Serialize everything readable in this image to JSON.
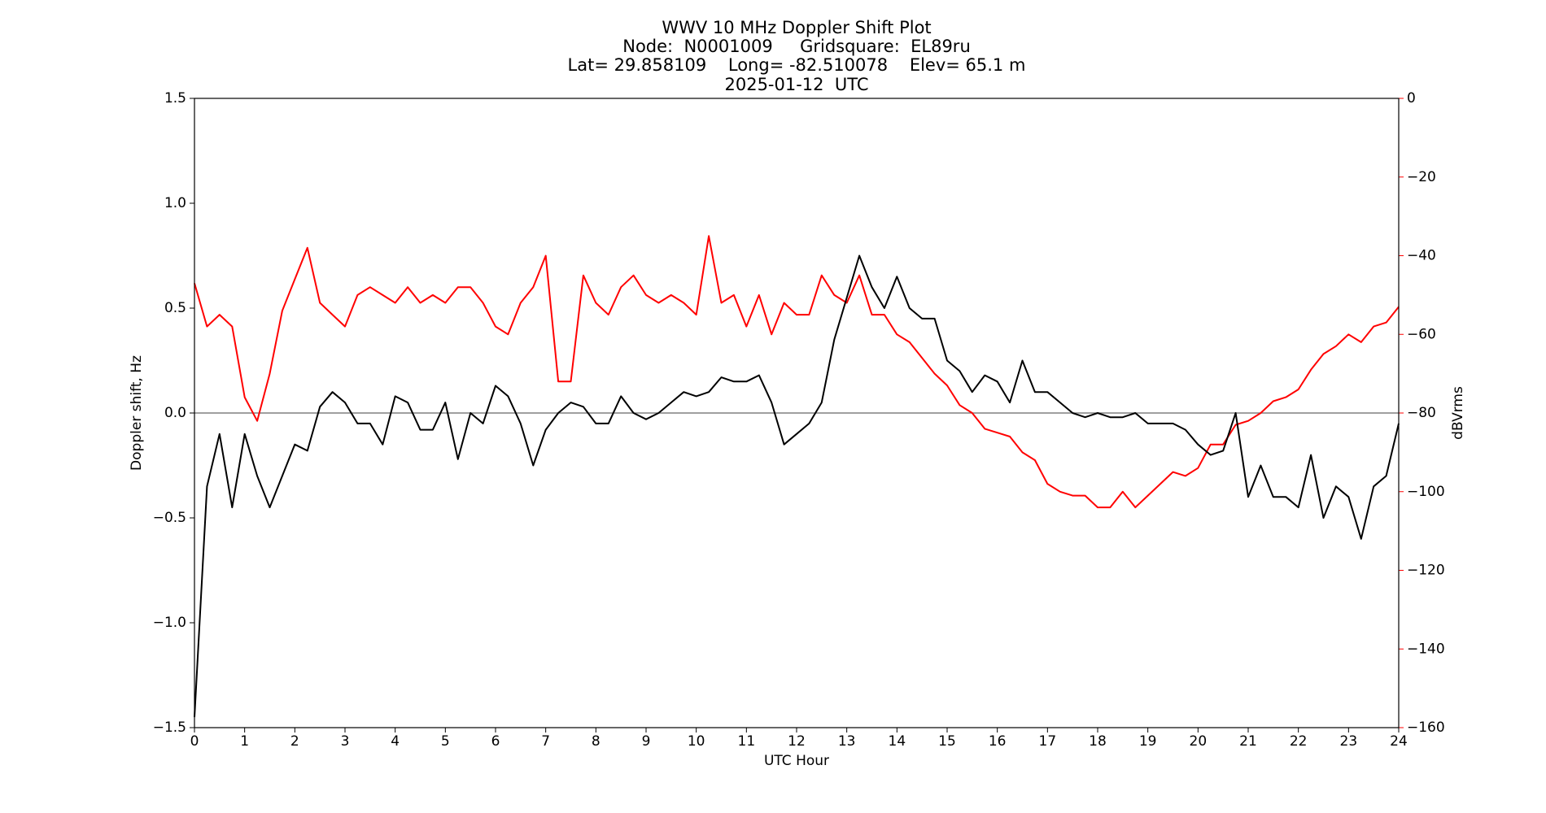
{
  "chart_data": {
    "type": "line",
    "title": "WWV 10 MHz Doppler Shift Plot",
    "subtitle": [
      "Node:  N0001009     Gridsquare:  EL89ru",
      "Lat= 29.858109    Long= -82.510078    Elev= 65.1 m",
      "2025-01-12  UTC"
    ],
    "x_label": "UTC Hour",
    "y_label": "Doppler shift, Hz",
    "y2_label": "dBVrms",
    "x": [
      0,
      0.25,
      0.5,
      0.75,
      1,
      1.25,
      1.5,
      1.75,
      2,
      2.25,
      2.5,
      2.75,
      3,
      3.25,
      3.5,
      3.75,
      4,
      4.25,
      4.5,
      4.75,
      5,
      5.25,
      5.5,
      5.75,
      6,
      6.25,
      6.5,
      6.75,
      7,
      7.25,
      7.5,
      7.75,
      8,
      8.25,
      8.5,
      8.75,
      9,
      9.25,
      9.5,
      9.75,
      10,
      10.25,
      10.5,
      10.75,
      11,
      11.25,
      11.5,
      11.75,
      12,
      12.25,
      12.5,
      12.75,
      13,
      13.25,
      13.5,
      13.75,
      14,
      14.25,
      14.5,
      14.75,
      15,
      15.25,
      15.5,
      15.75,
      16,
      16.25,
      16.5,
      16.75,
      17,
      17.25,
      17.5,
      17.75,
      18,
      18.25,
      18.5,
      18.75,
      19,
      19.25,
      19.5,
      19.75,
      20,
      20.25,
      20.5,
      20.75,
      21,
      21.25,
      21.5,
      21.75,
      22,
      22.25,
      22.5,
      22.75,
      23,
      23.25,
      23.5,
      23.75,
      24
    ],
    "series": [
      {
        "name": "Doppler shift",
        "color": "#000000",
        "values": [
          -1.45,
          -0.35,
          -0.1,
          -0.45,
          -0.1,
          -0.3,
          -0.45,
          -0.3,
          -0.15,
          -0.18,
          0.03,
          0.1,
          0.05,
          -0.05,
          -0.05,
          -0.15,
          0.08,
          0.05,
          -0.08,
          -0.08,
          0.05,
          -0.22,
          0,
          -0.05,
          0.13,
          0.08,
          -0.05,
          -0.25,
          -0.08,
          0,
          0.05,
          0.03,
          -0.05,
          -0.05,
          0.08,
          0,
          -0.03,
          0,
          0.05,
          0.1,
          0.08,
          0.1,
          0.17,
          0.15,
          0.15,
          0.18,
          0.05,
          -0.15,
          -0.1,
          -0.05,
          0.05,
          0.35,
          0.55,
          0.75,
          0.6,
          0.5,
          0.65,
          0.5,
          0.45,
          0.45,
          0.25,
          0.2,
          0.1,
          0.18,
          0.15,
          0.05,
          0.25,
          0.1,
          0.1,
          0.05,
          0,
          -0.02,
          0,
          -0.02,
          -0.02,
          0,
          -0.05,
          -0.05,
          -0.05,
          -0.08,
          -0.15,
          -0.2,
          -0.18,
          0,
          -0.4,
          -0.25,
          -0.4,
          -0.4,
          -0.45,
          -0.2,
          -0.5,
          -0.35,
          -0.4,
          -0.6,
          -0.35,
          -0.3,
          -0.05
        ]
      },
      {
        "name": "dBVrms",
        "color": "#ff0000",
        "axis": "y2",
        "values": [
          -47,
          -58,
          -55,
          -58,
          -76,
          -82,
          -70,
          -54,
          -46,
          -38,
          -52,
          -55,
          -58,
          -50,
          -48,
          -50,
          -52,
          -48,
          -52,
          -50,
          -52,
          -48,
          -48,
          -52,
          -58,
          -60,
          -52,
          -48,
          -40,
          -72,
          -72,
          -45,
          -52,
          -55,
          -48,
          -45,
          -50,
          -52,
          -50,
          -52,
          -55,
          -35,
          -52,
          -50,
          -58,
          -50,
          -60,
          -52,
          -55,
          -55,
          -45,
          -50,
          -52,
          -45,
          -55,
          -55,
          -60,
          -62,
          -66,
          -70,
          -73,
          -78,
          -80,
          -84,
          -85,
          -86,
          -90,
          -92,
          -98,
          -100,
          -101,
          -101,
          -104,
          -104,
          -100,
          -104,
          -101,
          -98,
          -95,
          -96,
          -94,
          -88,
          -88,
          -83,
          -82,
          -80,
          -77,
          -76,
          -74,
          -69,
          -65,
          -63,
          -60,
          -62,
          -58,
          -57,
          -53
        ]
      }
    ],
    "xlim": [
      0,
      24
    ],
    "xticks": [
      0,
      1,
      2,
      3,
      4,
      5,
      6,
      7,
      8,
      9,
      10,
      11,
      12,
      13,
      14,
      15,
      16,
      17,
      18,
      19,
      20,
      21,
      22,
      23,
      24
    ],
    "ylim": [
      -1.5,
      1.5
    ],
    "yticks": [
      {
        "value": -1.5,
        "label": "−1.5"
      },
      {
        "value": -1,
        "label": "−1.0"
      },
      {
        "value": -0.5,
        "label": "−0.5"
      },
      {
        "value": 0,
        "label": "0.0"
      },
      0.5,
      {
        "value": 1,
        "label": "1.0"
      },
      1.5
    ],
    "y2lim": [
      -160,
      0
    ],
    "y2ticks": [
      {
        "value": -160,
        "label": "−160"
      },
      {
        "value": -140,
        "label": "−140"
      },
      {
        "value": -120,
        "label": "−120"
      },
      {
        "value": -100,
        "label": "−100"
      },
      {
        "value": -80,
        "label": "−80"
      },
      {
        "value": -60,
        "label": "−60"
      },
      {
        "value": -40,
        "label": "−40"
      },
      {
        "value": -20,
        "label": "−20"
      },
      0
    ],
    "y2_color": "#ff0000",
    "hline": 0,
    "hline_color": "#808080"
  }
}
